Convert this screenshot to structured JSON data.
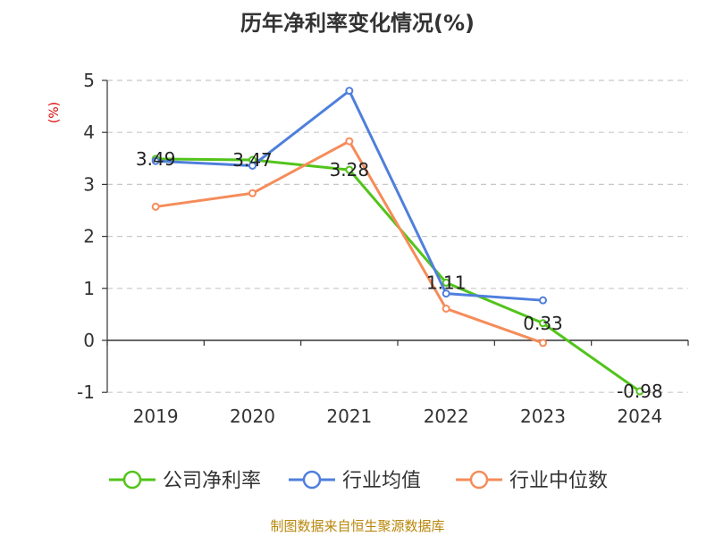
{
  "chart_data": {
    "type": "line",
    "title": "历年净利率变化情况(%)",
    "ylabel": "(%)",
    "categories": [
      "2019",
      "2020",
      "2021",
      "2022",
      "2023",
      "2024"
    ],
    "ylim": [
      -1,
      5
    ],
    "yticks": [
      "5",
      "4",
      "3",
      "2",
      "1",
      "0",
      "-1"
    ],
    "grid": true,
    "legend_position": "bottom",
    "series": [
      {
        "name": "公司净利率",
        "color": "#52c41a",
        "values": [
          3.49,
          3.47,
          3.28,
          1.11,
          0.33,
          -0.98
        ],
        "labels": [
          "3.49",
          "3.47",
          "3.28",
          "1.11",
          "0.33",
          "-0.98"
        ]
      },
      {
        "name": "行业均值",
        "color": "#4f7fdc",
        "values": [
          3.45,
          3.36,
          4.8,
          0.9,
          0.77,
          null
        ]
      },
      {
        "name": "行业中位数",
        "color": "#f58c5a",
        "values": [
          2.57,
          2.83,
          3.83,
          0.61,
          -0.05,
          null
        ]
      }
    ],
    "source": "制图数据来自恒生聚源数据库"
  }
}
